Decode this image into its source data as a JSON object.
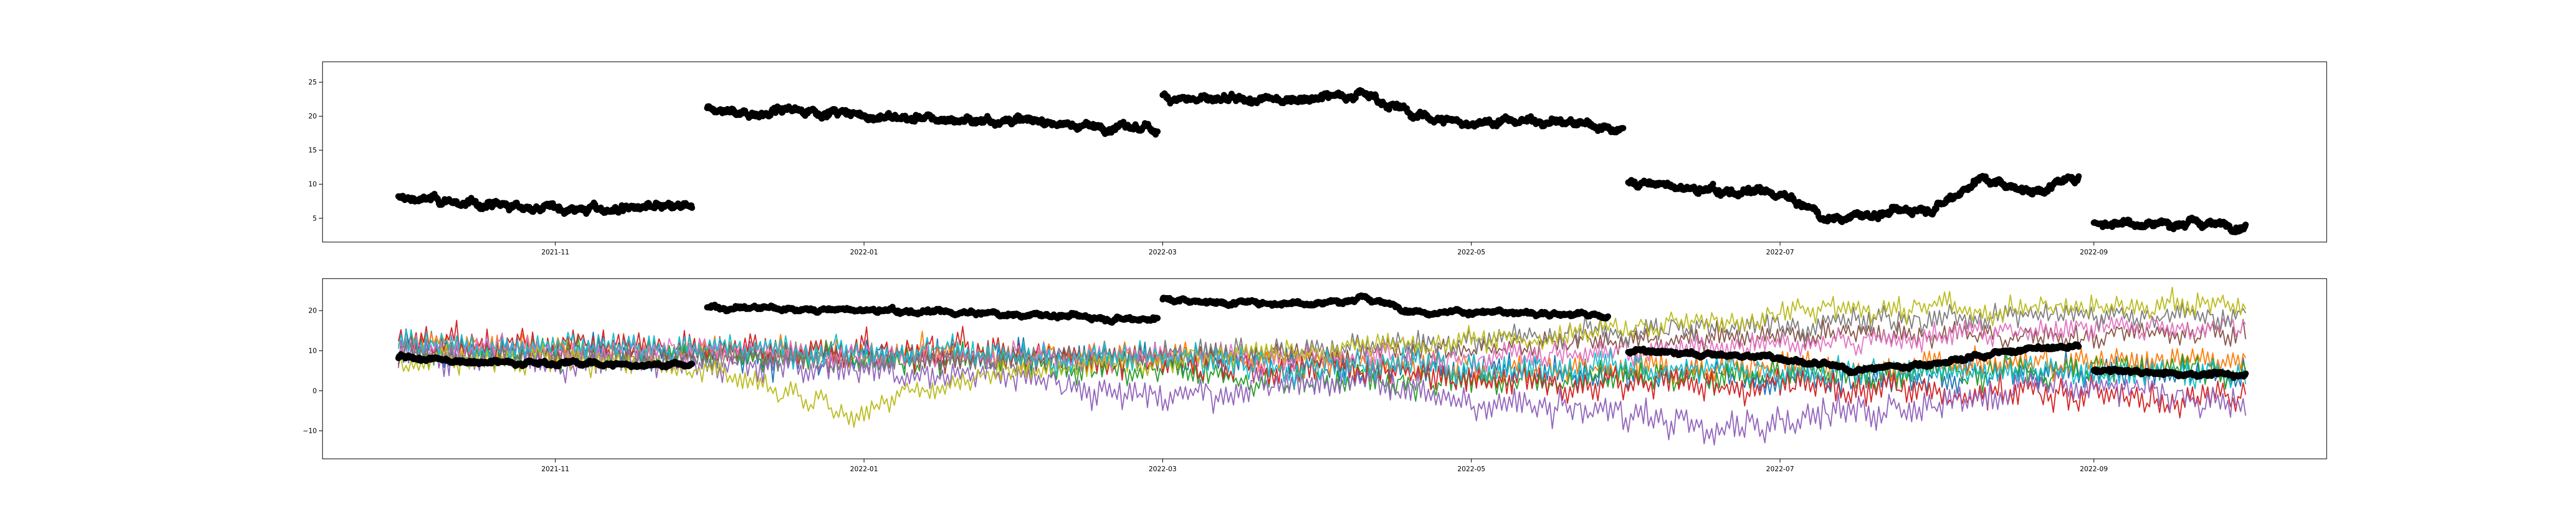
{
  "chart_data": [
    {
      "type": "scatter",
      "title": "",
      "xlabel": "",
      "ylabel": "",
      "xlim": [
        "2021-09-16",
        "2022-10-17"
      ],
      "ylim": [
        1.5,
        28
      ],
      "grid": false,
      "x_ticks": [
        "2021-11",
        "2022-01",
        "2022-03",
        "2022-05",
        "2022-07",
        "2022-09"
      ],
      "y_ticks": [
        5,
        10,
        15,
        20,
        25
      ],
      "series": [
        {
          "color": "#000000",
          "segments": [
            {
              "x": [
                "2021-10-01",
                "2021-10-10",
                "2021-10-20",
                "2021-11-01",
                "2021-11-10",
                "2021-11-20",
                "2021-11-28"
              ],
              "y": [
                8,
                7.5,
                6.8,
                6.5,
                6.3,
                6.6,
                6.4
              ]
            },
            {
              "x": [
                "2021-12-01",
                "2021-12-10",
                "2021-12-20",
                "2022-01-01",
                "2022-01-15",
                "2022-02-01",
                "2022-02-15",
                "2022-02-28"
              ],
              "y": [
                21,
                20.5,
                21,
                20,
                19.5,
                19.5,
                18.5,
                18
              ]
            },
            {
              "x": [
                "2022-03-01",
                "2022-03-15",
                "2022-04-01",
                "2022-04-10",
                "2022-04-20",
                "2022-05-01",
                "2022-05-15",
                "2022-05-31"
              ],
              "y": [
                23,
                22,
                23,
                23.5,
                20,
                19,
                19.5,
                18
              ]
            },
            {
              "x": [
                "2022-06-01",
                "2022-06-15",
                "2022-07-01",
                "2022-07-10",
                "2022-07-20",
                "2022-08-01",
                "2022-08-10",
                "2022-08-20",
                "2022-08-29"
              ],
              "y": [
                10.5,
                9,
                8.5,
                5,
                5.5,
                7,
                11,
                9,
                11
              ]
            },
            {
              "x": [
                "2022-09-01",
                "2022-09-15",
                "2022-10-01"
              ],
              "y": [
                4.5,
                4.3,
                4
              ]
            }
          ]
        }
      ]
    },
    {
      "type": "line",
      "title": "",
      "xlabel": "",
      "ylabel": "",
      "xlim": [
        "2021-09-16",
        "2022-10-17"
      ],
      "ylim": [
        -17,
        28
      ],
      "grid": false,
      "x_ticks": [
        "2021-11",
        "2022-01",
        "2022-03",
        "2022-05",
        "2022-07",
        "2022-09"
      ],
      "y_ticks": [
        -10,
        0,
        10,
        20
      ],
      "lines": [
        {
          "color": "#1f77b4",
          "base": [
            [
              0,
              11
            ],
            [
              60,
              9
            ],
            [
              120,
              8
            ],
            [
              180,
              7
            ],
            [
              230,
              4
            ],
            [
              280,
              3
            ],
            [
              330,
              5
            ],
            [
              366,
              4
            ]
          ],
          "noise": 4
        },
        {
          "color": "#ff7f0e",
          "base": [
            [
              0,
              12
            ],
            [
              60,
              10
            ],
            [
              120,
              9
            ],
            [
              180,
              8
            ],
            [
              230,
              5
            ],
            [
              280,
              6
            ],
            [
              330,
              7
            ],
            [
              366,
              8
            ]
          ],
          "noise": 3.5
        },
        {
          "color": "#2ca02c",
          "base": [
            [
              0,
              10
            ],
            [
              60,
              9
            ],
            [
              120,
              7
            ],
            [
              170,
              3
            ],
            [
              200,
              2
            ],
            [
              240,
              3
            ],
            [
              300,
              4
            ],
            [
              366,
              6
            ]
          ],
          "noise": 3.5
        },
        {
          "color": "#d62728",
          "base": [
            [
              0,
              12
            ],
            [
              60,
              11
            ],
            [
              120,
              9
            ],
            [
              180,
              6
            ],
            [
              230,
              2
            ],
            [
              280,
              1
            ],
            [
              330,
              -1
            ],
            [
              366,
              -2
            ]
          ],
          "noise": 4
        },
        {
          "color": "#9467bd",
          "base": [
            [
              0,
              9
            ],
            [
              60,
              7
            ],
            [
              120,
              4
            ],
            [
              150,
              -2
            ],
            [
              180,
              3
            ],
            [
              230,
              -5
            ],
            [
              270,
              -8
            ],
            [
              330,
              2
            ],
            [
              366,
              -3
            ]
          ],
          "noise": 4
        },
        {
          "color": "#8c564b",
          "base": [
            [
              0,
              10
            ],
            [
              60,
              9
            ],
            [
              120,
              8
            ],
            [
              180,
              9
            ],
            [
              230,
              12
            ],
            [
              280,
              14
            ],
            [
              330,
              14
            ],
            [
              366,
              14
            ]
          ],
          "noise": 3
        },
        {
          "color": "#e377c2",
          "base": [
            [
              0,
              11
            ],
            [
              60,
              10
            ],
            [
              120,
              9
            ],
            [
              180,
              8
            ],
            [
              230,
              9
            ],
            [
              280,
              12
            ],
            [
              330,
              16
            ],
            [
              366,
              16
            ]
          ],
          "noise": 3
        },
        {
          "color": "#7f7f7f",
          "base": [
            [
              0,
              9
            ],
            [
              60,
              8
            ],
            [
              120,
              8
            ],
            [
              180,
              10
            ],
            [
              230,
              14
            ],
            [
              280,
              17
            ],
            [
              330,
              19
            ],
            [
              366,
              19
            ]
          ],
          "noise": 3
        },
        {
          "color": "#bcbd22",
          "base": [
            [
              0,
              8
            ],
            [
              60,
              6
            ],
            [
              90,
              -5
            ],
            [
              120,
              5
            ],
            [
              180,
              10
            ],
            [
              230,
              14
            ],
            [
              280,
              20
            ],
            [
              330,
              21
            ],
            [
              366,
              22
            ]
          ],
          "noise": 3
        },
        {
          "color": "#17becf",
          "base": [
            [
              0,
              12
            ],
            [
              60,
              11
            ],
            [
              120,
              9
            ],
            [
              180,
              7
            ],
            [
              230,
              6
            ],
            [
              280,
              5
            ],
            [
              330,
              4
            ],
            [
              366,
              4
            ]
          ],
          "noise": 3.5
        }
      ],
      "scatter_overlay": {
        "color": "#000000",
        "segments": [
          {
            "x": [
              "2021-10-01",
              "2021-10-15",
              "2021-11-01",
              "2021-11-15",
              "2021-11-28"
            ],
            "y": [
              8,
              7.5,
              7,
              6.5,
              6.5
            ]
          },
          {
            "x": [
              "2021-12-01",
              "2021-12-15",
              "2022-01-01",
              "2022-01-15",
              "2022-02-01",
              "2022-02-15",
              "2022-02-28"
            ],
            "y": [
              21,
              20.5,
              20,
              19.5,
              19,
              18.5,
              18
            ]
          },
          {
            "x": [
              "2022-03-01",
              "2022-03-15",
              "2022-04-01",
              "2022-04-10",
              "2022-04-20",
              "2022-05-01",
              "2022-05-15",
              "2022-05-28"
            ],
            "y": [
              23,
              22,
              22,
              23,
              20,
              19.5,
              19.5,
              18.5
            ]
          },
          {
            "x": [
              "2022-06-01",
              "2022-06-15",
              "2022-07-01",
              "2022-07-15",
              "2022-08-01",
              "2022-08-15",
              "2022-08-29"
            ],
            "y": [
              10,
              9,
              8.5,
              5,
              7,
              10,
              11
            ]
          },
          {
            "x": [
              "2022-09-01",
              "2022-09-15",
              "2022-10-01"
            ],
            "y": [
              5,
              4.5,
              4
            ]
          }
        ]
      }
    }
  ]
}
